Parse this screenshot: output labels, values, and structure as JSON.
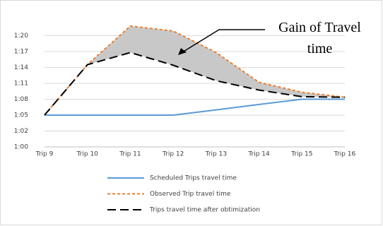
{
  "chart_data": {
    "type": "line",
    "annotation": "Gain of Travel time",
    "categories": [
      "Trip 9",
      "Trip 10",
      "Trip 11",
      "Trip 12",
      "Trip 13",
      "Trip 14",
      "Trip 15",
      "Trip 16"
    ],
    "series": [
      {
        "name": "Scheduled Trips travel time",
        "color": "#5b9bd5",
        "dash": "none",
        "values": [
          65.76,
          65.76,
          65.76,
          65.76,
          66.7,
          67.7,
          68.64,
          68.64
        ]
      },
      {
        "name": "Observed Trip travel time",
        "color": "#ed7d31",
        "dash": "4 3",
        "values": [
          65.76,
          74.9,
          81.9,
          81.0,
          77.1,
          71.7,
          69.9,
          69.0
        ]
      },
      {
        "name": "Trips travel time after obtimization",
        "color": "#000000",
        "dash": "12 6",
        "values": [
          65.76,
          74.9,
          77.1,
          74.8,
          72.0,
          70.3,
          69.1,
          69.0
        ]
      }
    ],
    "fill_between": [
      1,
      2
    ],
    "fill_color": "#c8c8c8",
    "ylim": [
      60,
      83.04
    ],
    "yticks": [
      {
        "value": 60,
        "label": "1:00"
      },
      {
        "value": 62.88,
        "label": "1:02"
      },
      {
        "value": 65.76,
        "label": "1:05"
      },
      {
        "value": 68.64,
        "label": "1:08"
      },
      {
        "value": 71.52,
        "label": "1:11"
      },
      {
        "value": 74.4,
        "label": "1:14"
      },
      {
        "value": 77.28,
        "label": "1:17"
      },
      {
        "value": 80.16,
        "label": "1:20"
      }
    ],
    "grid": true
  }
}
